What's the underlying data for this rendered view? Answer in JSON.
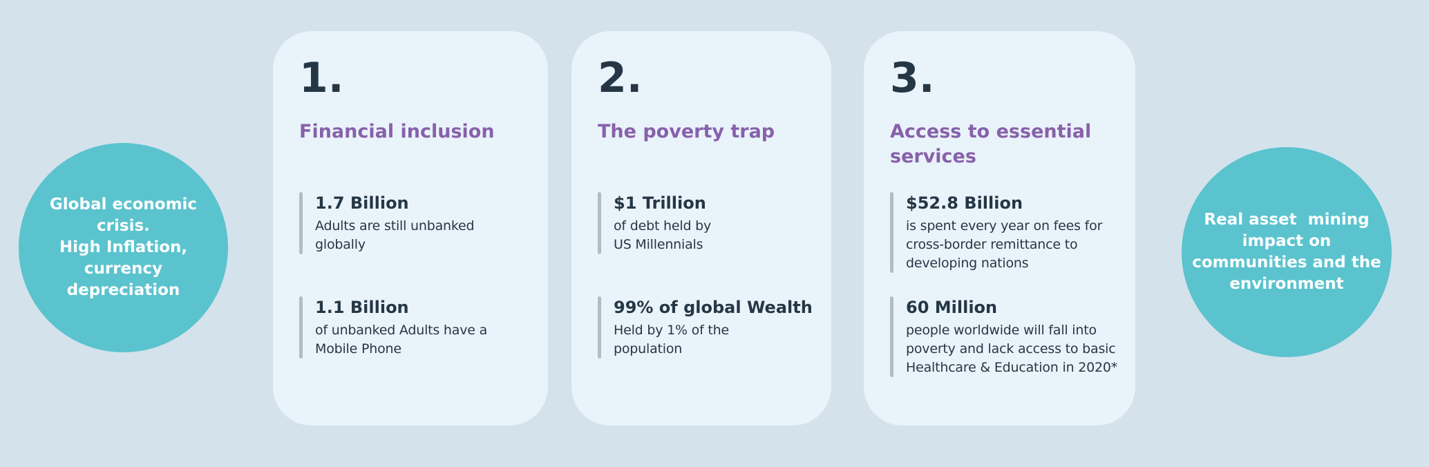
{
  "colors": {
    "background": "#d4e2ec",
    "card_background": "#e9f3fa",
    "circle_background": "#5ac3ce",
    "heading_purple": "#8761aa",
    "text_dark": "#253744",
    "accent_bar": "#b3bcc3",
    "circle_text": "#ffffff"
  },
  "left_circle": {
    "text": "Global economic\ncrisis.\nHigh Inflation,\ncurrency\ndepreciation"
  },
  "right_circle": {
    "text": "Real asset  mining\nimpact on\ncommunities and the\nenvironment"
  },
  "cards": [
    {
      "number": "1.",
      "title": "Financial inclusion",
      "stats": [
        {
          "value": "1.7 Billion",
          "description": "Adults are still unbanked\nglobally"
        },
        {
          "value": "1.1 Billion",
          "description": "of unbanked Adults have a\nMobile Phone"
        }
      ]
    },
    {
      "number": "2.",
      "title": "The poverty trap",
      "stats": [
        {
          "value": "$1 Trillion",
          "description": "of debt held by\nUS Millennials"
        },
        {
          "value": "99% of global Wealth",
          "description": "Held by 1% of the\npopulation"
        }
      ]
    },
    {
      "number": "3.",
      "title": "Access to essential\nservices",
      "stats": [
        {
          "value": "$52.8 Billion",
          "description": "is spent every year on fees for\ncross-border remittance to\ndeveloping nations"
        },
        {
          "value": "60 Million",
          "description": "people worldwide will fall into\npoverty and lack access to basic\nHealthcare & Education in 2020*"
        }
      ]
    }
  ]
}
